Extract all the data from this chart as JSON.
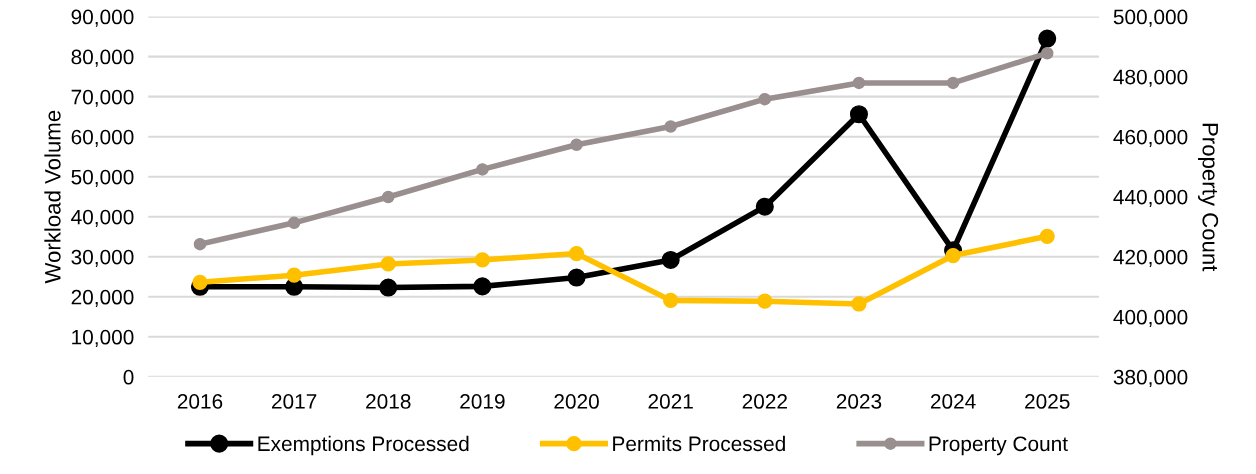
{
  "chart_data": {
    "type": "line",
    "ylabel": "Workload Volume",
    "y2label": "Property Count",
    "categories": [
      "2016",
      "2017",
      "2018",
      "2019",
      "2020",
      "2021",
      "2022",
      "2023",
      "2024",
      "2025"
    ],
    "series": [
      {
        "name": "Exemptions Processed",
        "color": "#000000",
        "values": [
          22500,
          22500,
          22300,
          22600,
          24800,
          29200,
          42500,
          65600,
          31600,
          84500
        ]
      },
      {
        "name": "Permits Processed",
        "color": "#ffc000",
        "values": [
          23600,
          25400,
          28200,
          29200,
          30800,
          19100,
          18900,
          18200,
          30300,
          35100
        ]
      },
      {
        "name": "Property Count",
        "color": "#998f8f",
        "axis": "y2",
        "values": [
          424200,
          431300,
          439900,
          449100,
          457300,
          463400,
          472500,
          477900,
          477900,
          487800
        ]
      }
    ],
    "ylim": [
      0,
      90000
    ],
    "yticks": [
      {
        "value": 0,
        "label": "0"
      },
      {
        "value": 10000,
        "label": "10,000"
      },
      {
        "value": 20000,
        "label": "20,000"
      },
      {
        "value": 30000,
        "label": "30,000"
      },
      {
        "value": 40000,
        "label": "40,000"
      },
      {
        "value": 50000,
        "label": "50,000"
      },
      {
        "value": 60000,
        "label": "60,000"
      },
      {
        "value": 70000,
        "label": "70,000"
      },
      {
        "value": 80000,
        "label": "80,000"
      },
      {
        "value": 90000,
        "label": "90,000"
      }
    ],
    "y2lim": [
      380000,
      500000
    ],
    "y2ticks": [
      {
        "value": 380000,
        "label": "380,000"
      },
      {
        "value": 400000,
        "label": "400,000"
      },
      {
        "value": 420000,
        "label": "420,000"
      },
      {
        "value": 440000,
        "label": "440,000"
      },
      {
        "value": 460000,
        "label": "460,000"
      },
      {
        "value": 480000,
        "label": "480,000"
      },
      {
        "value": 500000,
        "label": "500,000"
      }
    ],
    "grid": "y",
    "legend": "bottom",
    "marker": "circle",
    "line_style": "solid"
  }
}
